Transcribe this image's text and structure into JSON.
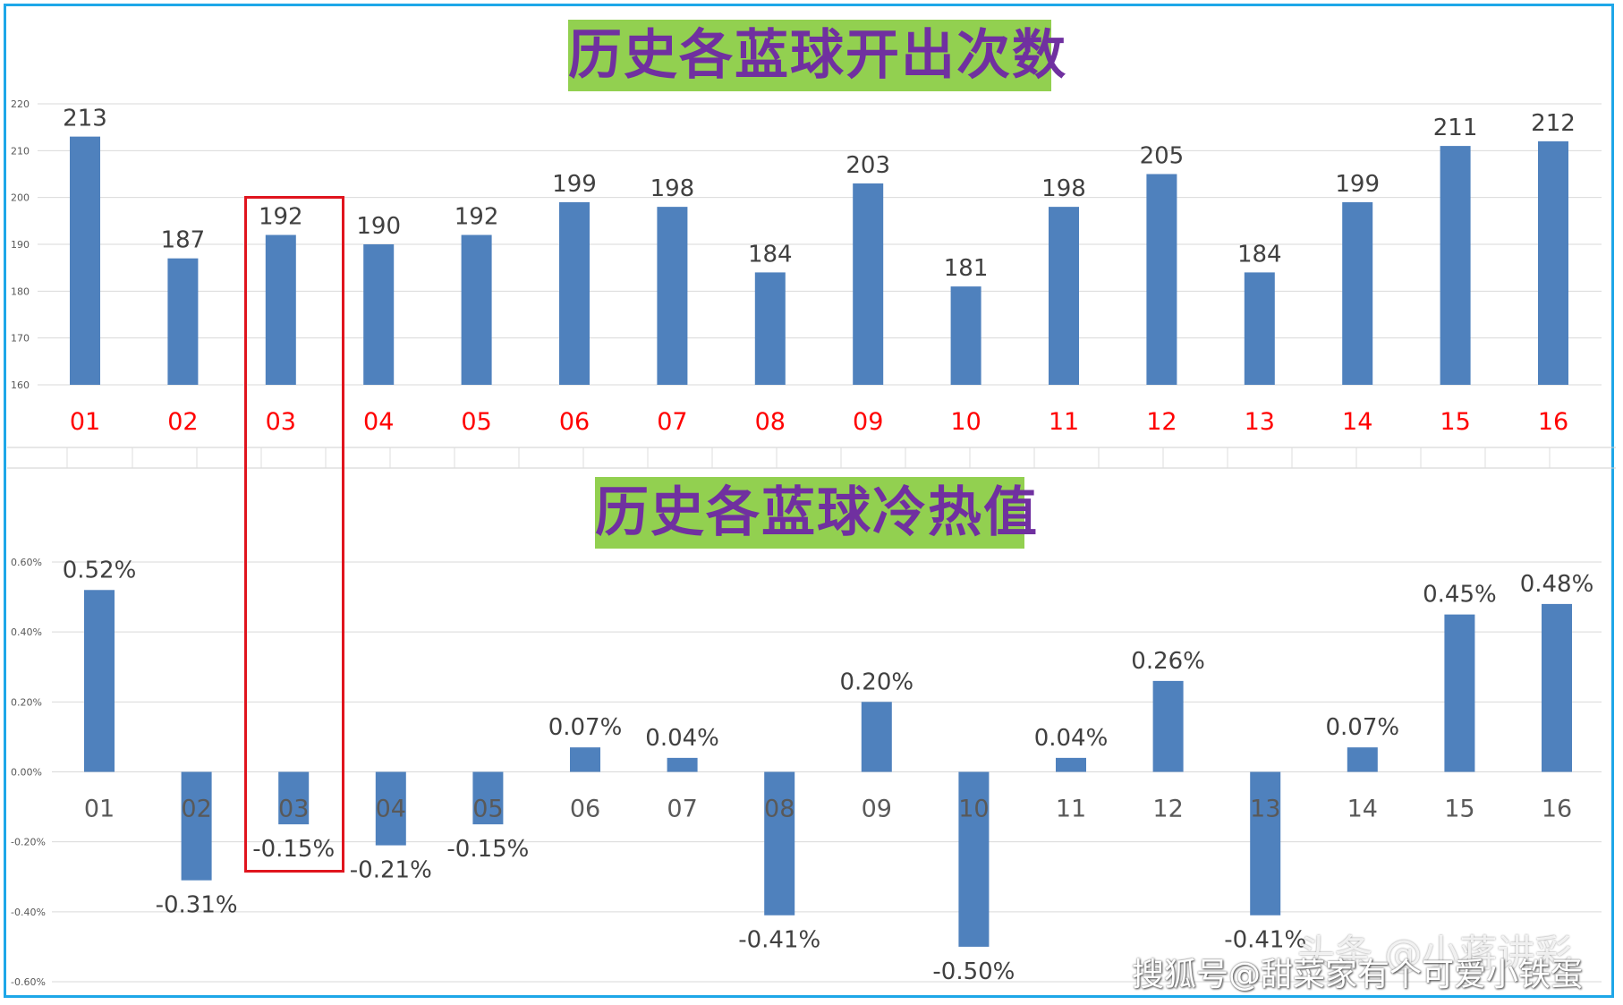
{
  "chart_data": [
    {
      "type": "bar",
      "title": "历史各蓝球开出次数",
      "categories": [
        "01",
        "02",
        "03",
        "04",
        "05",
        "06",
        "07",
        "08",
        "09",
        "10",
        "11",
        "12",
        "13",
        "14",
        "15",
        "16"
      ],
      "values": [
        213,
        187,
        192,
        190,
        192,
        199,
        198,
        184,
        203,
        181,
        198,
        205,
        184,
        199,
        211,
        212
      ],
      "ylim": [
        160,
        220
      ],
      "yticks": [
        "160",
        "170",
        "180",
        "190",
        "200",
        "210",
        "220"
      ],
      "data_labels": [
        "213",
        "187",
        "192",
        "190",
        "192",
        "199",
        "198",
        "184",
        "203",
        "181",
        "198",
        "205",
        "184",
        "199",
        "211",
        "212"
      ],
      "grid": true,
      "bar_color": "#4f81bd",
      "category_label_color": "#ff0000"
    },
    {
      "type": "bar",
      "title": "历史各蓝球冷热值",
      "categories": [
        "01",
        "02",
        "03",
        "04",
        "05",
        "06",
        "07",
        "08",
        "09",
        "10",
        "11",
        "12",
        "13",
        "14",
        "15",
        "16"
      ],
      "values": [
        0.52,
        -0.31,
        -0.15,
        -0.21,
        -0.15,
        0.07,
        0.04,
        -0.41,
        0.2,
        -0.5,
        0.04,
        0.26,
        -0.41,
        0.07,
        0.45,
        0.48
      ],
      "ylim": [
        -0.6,
        0.6
      ],
      "yticks": [
        "-0.60%",
        "-0.40%",
        "-0.20%",
        "0.00%",
        "0.20%",
        "0.40%",
        "0.60%"
      ],
      "data_labels": [
        "0.52%",
        "-0.31%",
        "-0.15%",
        "-0.21%",
        "-0.15%",
        "0.07%",
        "0.04%",
        "-0.41%",
        "0.20%",
        "-0.50%",
        "0.04%",
        "0.26%",
        "-0.41%",
        "0.07%",
        "0.45%",
        "0.48%"
      ],
      "grid": true,
      "bar_color": "#4f81bd",
      "category_label_color": "#595959"
    }
  ],
  "highlight": {
    "category": "03",
    "color": "#e0141e"
  },
  "watermark": {
    "primary": "搜狐号@甜菜家有个可爱小铁蛋",
    "secondary": "头条 @小蒋讲彩"
  }
}
